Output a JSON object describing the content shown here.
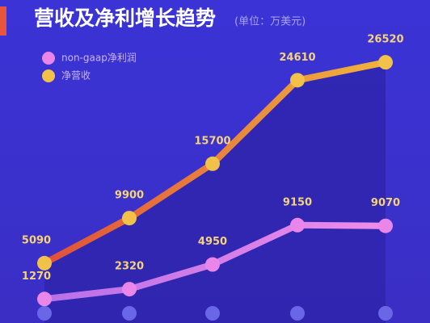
{
  "chart_data": {
    "type": "line",
    "title": "营收及净利增长趋势",
    "subtitle": "(单位：万美元)",
    "categories": [
      null,
      null,
      null,
      null,
      null
    ],
    "series": [
      {
        "name": "non-gaap净利润",
        "color": "#ea86ea",
        "values": [
          1270,
          2320,
          4950,
          9150,
          9070
        ]
      },
      {
        "name": "净营收",
        "color": "#f2c14a",
        "values": [
          5090,
          9900,
          15700,
          24610,
          26520
        ]
      }
    ],
    "ylim": [
      0,
      28000
    ]
  }
}
